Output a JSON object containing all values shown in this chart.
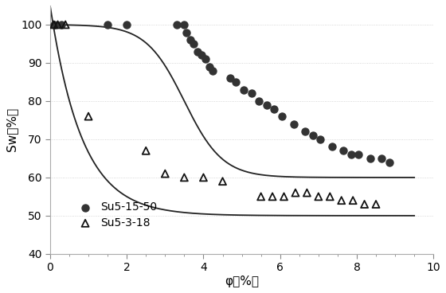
{
  "xlabel": "φ（%）",
  "ylabel": "Sw（%）",
  "xlim": [
    0,
    10
  ],
  "ylim": [
    40,
    105
  ],
  "yticks": [
    40,
    50,
    60,
    70,
    80,
    90,
    100
  ],
  "xticks": [
    0,
    2,
    4,
    6,
    8,
    10
  ],
  "series1_label": "Su5-15-50",
  "series2_label": "Su5-3-18",
  "series1_x": [
    0.1,
    0.3,
    1.5,
    2.0,
    3.3,
    3.5,
    3.55,
    3.65,
    3.75,
    3.85,
    3.95,
    4.05,
    4.15,
    4.25,
    4.7,
    4.85,
    5.05,
    5.25,
    5.45,
    5.65,
    5.85,
    6.05,
    6.35,
    6.65,
    6.85,
    7.05,
    7.35,
    7.65,
    7.85,
    8.05,
    8.35,
    8.65,
    8.85
  ],
  "series1_y": [
    100,
    100,
    100,
    100,
    100,
    100,
    98,
    96,
    95,
    93,
    92,
    91,
    89,
    88,
    86,
    85,
    83,
    82,
    80,
    79,
    78,
    76,
    74,
    72,
    71,
    70,
    68,
    67,
    66,
    66,
    65,
    65,
    64
  ],
  "series2_x": [
    0.1,
    0.2,
    0.4,
    1.0,
    2.5,
    3.0,
    3.5,
    4.0,
    4.5,
    5.5,
    5.8,
    6.1,
    6.4,
    6.7,
    7.0,
    7.3,
    7.6,
    7.9,
    8.2,
    8.5
  ],
  "series2_y": [
    100,
    100,
    100,
    76,
    67,
    61,
    60,
    60,
    59,
    55,
    55,
    55,
    56,
    56,
    55,
    55,
    54,
    54,
    53,
    53
  ],
  "curve1_color": "#222222",
  "curve2_color": "#222222",
  "scatter1_color": "#333333",
  "scatter2_edgecolor": "#111111",
  "background_color": "#ffffff",
  "grid_color": "#cccccc"
}
